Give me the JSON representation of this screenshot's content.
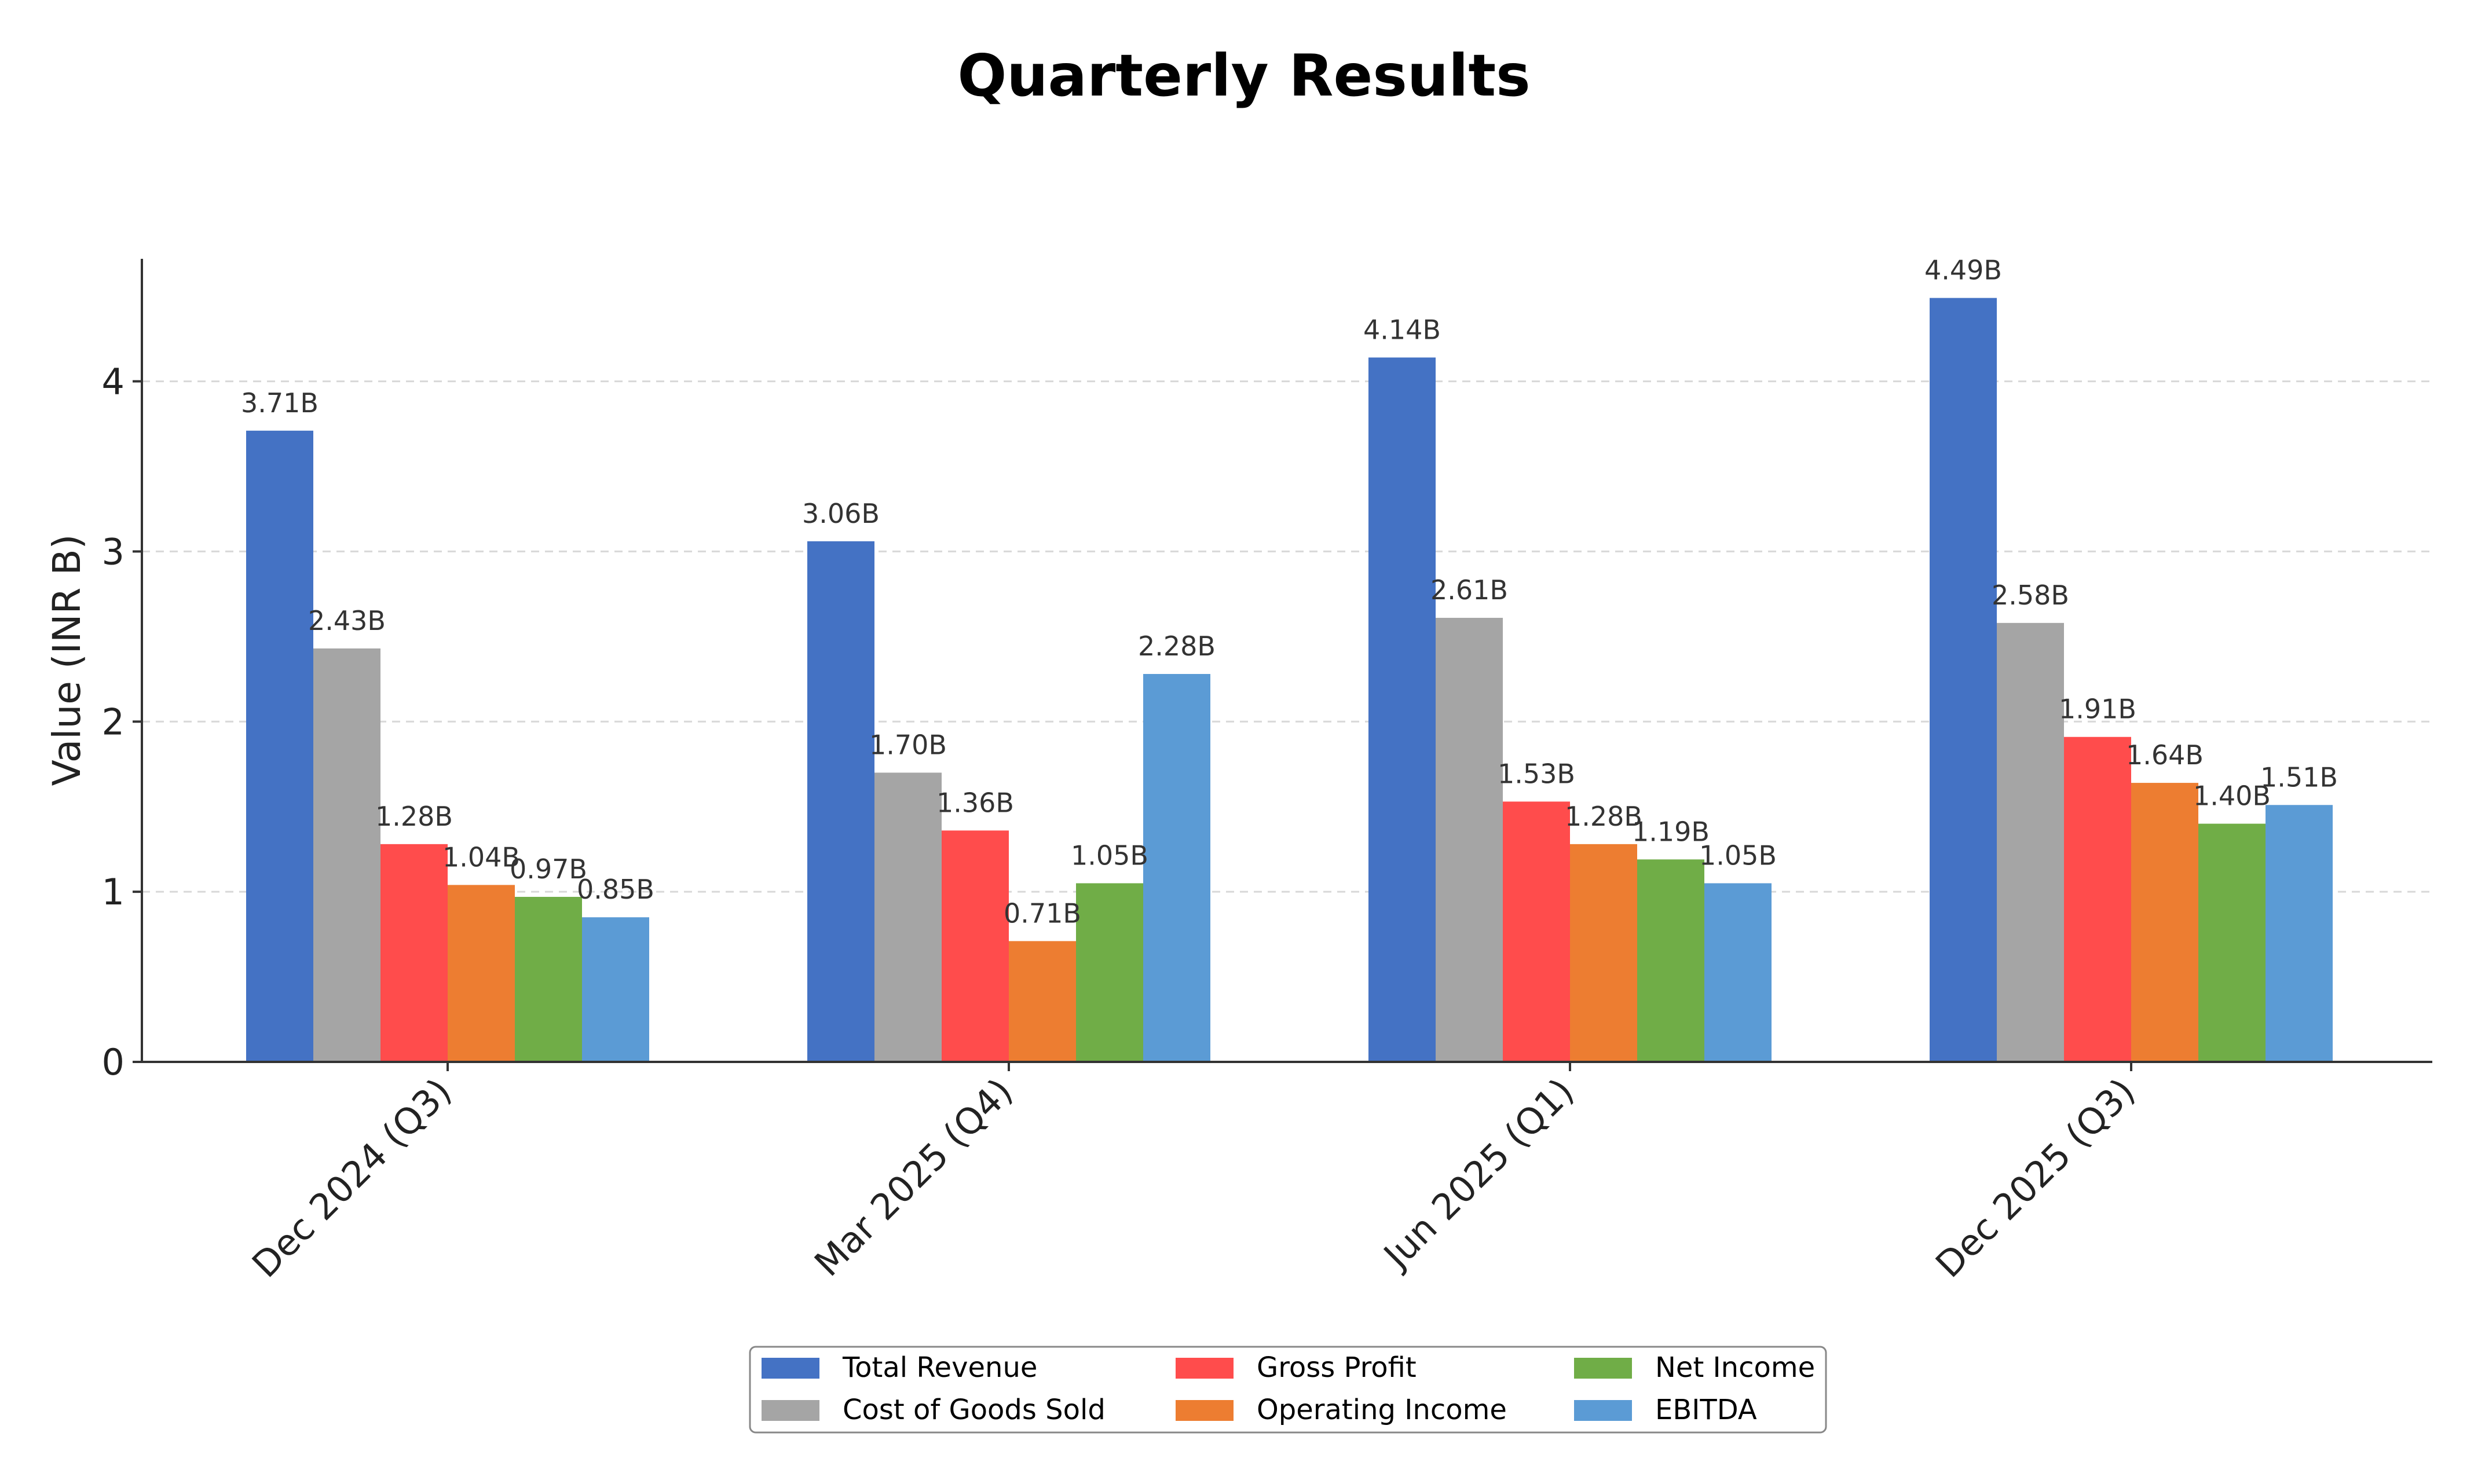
{
  "chart_data": {
    "type": "bar",
    "title": "Quarterly Results",
    "xlabel": "",
    "ylabel": "Value (INR B)",
    "ylim": [
      0,
      4.72
    ],
    "yticks": [
      0,
      1,
      2,
      3,
      4
    ],
    "grid": true,
    "legend_position": "bottom-center",
    "categories": [
      "Dec 2024 (Q3)",
      "Mar 2025 (Q4)",
      "Jun 2025 (Q1)",
      "Dec 2025 (Q3)"
    ],
    "series": [
      {
        "name": "Total Revenue",
        "color": "#4472C4",
        "values": [
          3.71,
          3.06,
          4.14,
          4.49
        ],
        "labels": [
          "3.71B",
          "3.06B",
          "4.14B",
          "4.49B"
        ]
      },
      {
        "name": "Cost of Goods Sold",
        "color": "#A5A5A5",
        "values": [
          2.43,
          1.7,
          2.61,
          2.58
        ],
        "labels": [
          "2.43B",
          "1.70B",
          "2.61B",
          "2.58B"
        ]
      },
      {
        "name": "Gross Profit",
        "color": "#FF4C4C",
        "values": [
          1.28,
          1.36,
          1.53,
          1.91
        ],
        "labels": [
          "1.28B",
          "1.36B",
          "1.53B",
          "1.91B"
        ]
      },
      {
        "name": "Operating Income",
        "color": "#ED7D31",
        "values": [
          1.04,
          0.71,
          1.28,
          1.64
        ],
        "labels": [
          "1.04B",
          "0.71B",
          "1.28B",
          "1.64B"
        ]
      },
      {
        "name": "Net Income",
        "color": "#70AD47",
        "values": [
          0.97,
          1.05,
          1.19,
          1.4
        ],
        "labels": [
          "0.97B",
          "1.05B",
          "1.19B",
          "1.40B"
        ]
      },
      {
        "name": "EBITDA",
        "color": "#5B9BD5",
        "values": [
          0.85,
          2.28,
          1.05,
          1.51
        ],
        "labels": [
          "0.85B",
          "2.28B",
          "1.05B",
          "1.51B"
        ]
      }
    ]
  }
}
